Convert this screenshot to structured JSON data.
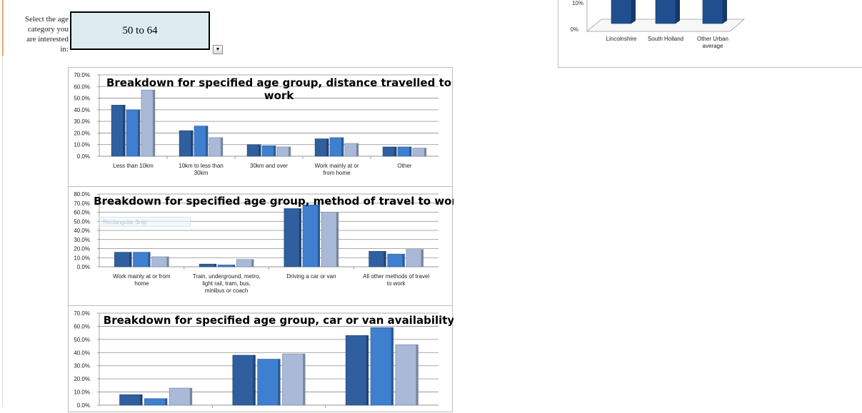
{
  "selector": {
    "prompt_lines": [
      "Select the age",
      "category you",
      "are interested",
      "in:"
    ],
    "value": "50 to 64",
    "dropdown_icon": "chevron-down-icon"
  },
  "colors": {
    "Lincolnshire": "#2f5f9f",
    "South Holland": "#3f7fd0",
    "Other Urban": "#a9b9d8"
  },
  "ghost_shape_label": "Rectangular Snip",
  "chart_data": [
    {
      "id": "distance",
      "type": "bar",
      "title": "Breakdown for specified age group, distance travelled to work",
      "title_lines": [
        "Breakdown for specified age group, distance travelled to",
        "work"
      ],
      "categories": [
        [
          "Less than 10km"
        ],
        [
          "10km to less than",
          "30km"
        ],
        [
          "30km and over"
        ],
        [
          "Work mainly at or",
          "from home"
        ],
        [
          "Other"
        ]
      ],
      "series": [
        {
          "name": "Lincolnshire",
          "values": [
            0.44,
            0.22,
            0.1,
            0.15,
            0.08
          ]
        },
        {
          "name": "South Holland",
          "values": [
            0.4,
            0.26,
            0.09,
            0.16,
            0.08
          ]
        },
        {
          "name": "Other Urban",
          "values": [
            0.57,
            0.16,
            0.08,
            0.11,
            0.07
          ]
        }
      ],
      "ylim": [
        0,
        0.7
      ],
      "yticks": [
        "0.0%",
        "10.0%",
        "20.0%",
        "30.0%",
        "40.0%",
        "50.0%",
        "60.0%",
        "70.0%"
      ],
      "grid": true,
      "legend_position": "right"
    },
    {
      "id": "method",
      "type": "bar",
      "title": "Breakdown for specified age group, method of travel to work",
      "title_lines": [
        "Breakdown for specified age group, method of travel to work"
      ],
      "categories": [
        [
          "Work mainly at or from",
          "home"
        ],
        [
          "Train, underground, metro,",
          "light rail, tram, bus,",
          "minibus or coach"
        ],
        [
          "Driving a car or van"
        ],
        [
          "All other methods of travel",
          "to work"
        ]
      ],
      "series": [
        {
          "name": "Lincolnshire",
          "values": [
            0.16,
            0.03,
            0.64,
            0.17
          ]
        },
        {
          "name": "South Holland",
          "values": [
            0.16,
            0.02,
            0.68,
            0.14
          ]
        },
        {
          "name": "Other Urban",
          "values": [
            0.11,
            0.08,
            0.6,
            0.19
          ]
        }
      ],
      "ylim": [
        0,
        0.8
      ],
      "yticks": [
        "0.0%",
        "10.0%",
        "20.0%",
        "30.0%",
        "40.0%",
        "50.0%",
        "60.0%",
        "70.0%",
        "80.0%"
      ],
      "grid": true,
      "legend_position": "right"
    },
    {
      "id": "car",
      "type": "bar",
      "title": "Breakdown for specified age group, car or van availability",
      "title_lines": [
        "Breakdown for specified age group, car or van availability"
      ],
      "categories": [
        [
          ""
        ],
        [
          ""
        ],
        [
          ""
        ]
      ],
      "series": [
        {
          "name": "Lincolnshire",
          "values": [
            0.08,
            0.38,
            0.53
          ]
        },
        {
          "name": "South Holland",
          "values": [
            0.05,
            0.35,
            0.59
          ]
        },
        {
          "name": "Other Urban",
          "values": [
            0.13,
            0.39,
            0.46
          ]
        }
      ],
      "ylim": [
        0,
        0.7
      ],
      "yticks": [
        "0.0%",
        "10.0%",
        "20.0%",
        "30.0%",
        "40.0%",
        "50.0%",
        "60.0%",
        "70.0%"
      ],
      "grid": true,
      "legend_position": "right"
    },
    {
      "id": "area-average",
      "type": "bar",
      "categories": [
        [
          "Lincolnshire"
        ],
        [
          "South Holland"
        ],
        [
          "Other Urban",
          "average"
        ]
      ],
      "series": [
        {
          "name": "",
          "values": [
            null,
            null,
            null
          ]
        }
      ],
      "yticks": [
        "0%",
        "10%"
      ],
      "grid": false,
      "legend_position": "none"
    }
  ]
}
